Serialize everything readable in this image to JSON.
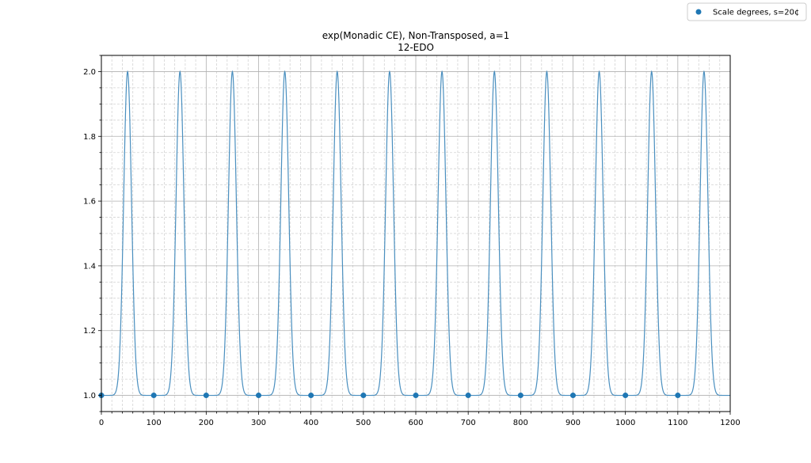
{
  "chart_data": {
    "type": "line",
    "title": "exp(Monadic CE), Non-Transposed, a=1",
    "subtitle": "12-EDO",
    "xlabel": "",
    "ylabel": "",
    "xlim": [
      0,
      1200
    ],
    "ylim": [
      0.95,
      2.05
    ],
    "x_ticks": [
      0,
      100,
      200,
      300,
      400,
      500,
      600,
      700,
      800,
      900,
      1000,
      1100,
      1200
    ],
    "x_tick_labels": [
      "0",
      "100",
      "200",
      "300",
      "400",
      "500",
      "600",
      "700",
      "800",
      "900",
      "1000",
      "1100",
      "1200"
    ],
    "y_ticks": [
      1.0,
      1.2,
      1.4,
      1.6,
      1.8,
      2.0
    ],
    "y_tick_labels": [
      "1.0",
      "1.2",
      "1.4",
      "1.6",
      "1.8",
      "2.0"
    ],
    "grid": true,
    "minor_grid": true,
    "legend_position": "top-right",
    "line_color": "#4a8fbf",
    "marker_color": "#1f77b4",
    "curve": {
      "period": 100,
      "peak_offset": 50,
      "min": 1.0,
      "max": 2.0
    },
    "series": [
      {
        "name": "Scale degrees, s=20¢",
        "kind": "scatter",
        "x": [
          0,
          100,
          200,
          300,
          400,
          500,
          600,
          700,
          800,
          900,
          1000,
          1100
        ],
        "y": [
          1.0,
          1.0,
          1.0,
          1.0,
          1.0,
          1.0,
          1.0,
          1.0,
          1.0,
          1.0,
          1.0,
          1.0
        ]
      }
    ]
  }
}
